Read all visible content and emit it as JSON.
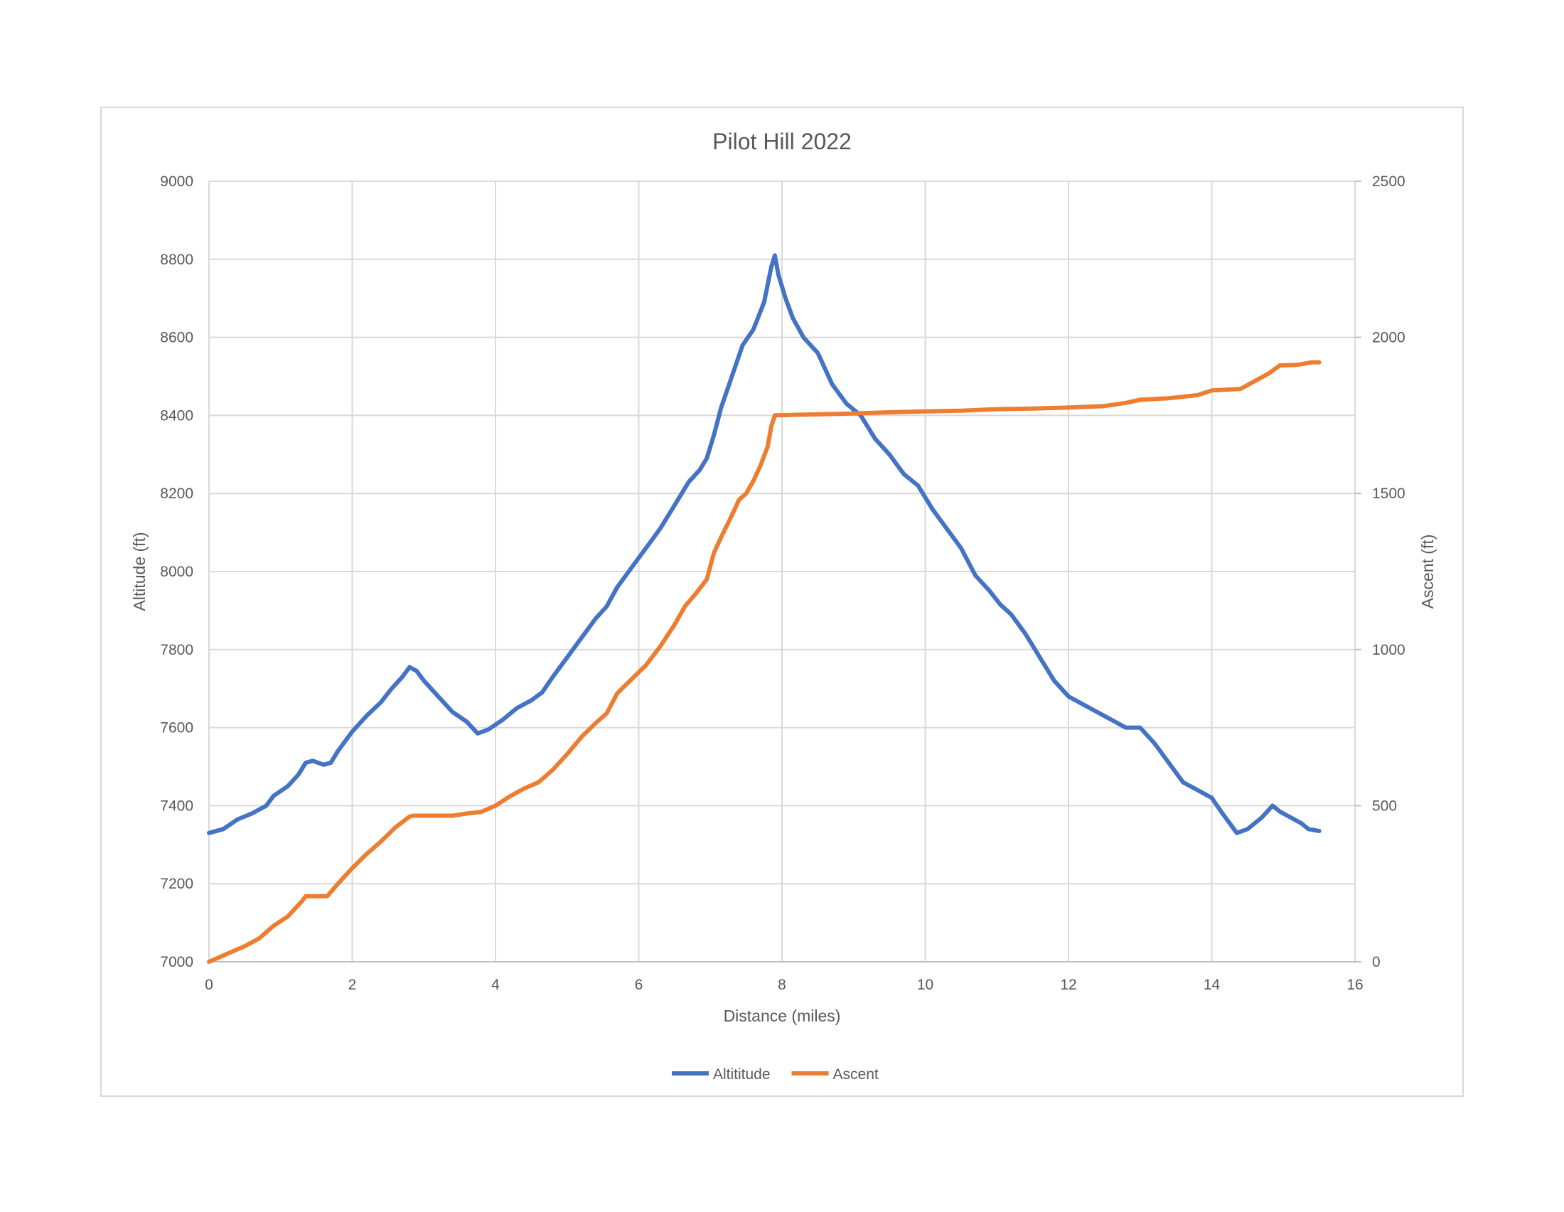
{
  "chart_data": {
    "type": "line",
    "title": "Pilot Hill 2022",
    "xlabel": "Distance (miles)",
    "ylabel": "Altitude (ft)",
    "y2label": "Ascent (ft)",
    "xlim": [
      0,
      16
    ],
    "ylim": [
      7000,
      9000
    ],
    "y2lim": [
      0,
      2500
    ],
    "xticks": [
      0,
      2,
      4,
      6,
      8,
      10,
      12,
      14,
      16
    ],
    "yticks": [
      7000,
      7200,
      7400,
      7600,
      7800,
      8000,
      8200,
      8400,
      8600,
      8800,
      9000
    ],
    "y2ticks": [
      0,
      500,
      1000,
      1500,
      2000,
      2500
    ],
    "grid": true,
    "legend_position": "bottom",
    "series": [
      {
        "name": "Altititude",
        "axis": "left",
        "color": "#4472C4",
        "points": [
          [
            0,
            7330
          ],
          [
            0.2,
            7340
          ],
          [
            0.4,
            7365
          ],
          [
            0.6,
            7380
          ],
          [
            0.8,
            7400
          ],
          [
            0.9,
            7425
          ],
          [
            1.1,
            7450
          ],
          [
            1.25,
            7480
          ],
          [
            1.35,
            7510
          ],
          [
            1.45,
            7515
          ],
          [
            1.6,
            7505
          ],
          [
            1.7,
            7510
          ],
          [
            1.8,
            7540
          ],
          [
            2.0,
            7590
          ],
          [
            2.2,
            7630
          ],
          [
            2.4,
            7665
          ],
          [
            2.55,
            7700
          ],
          [
            2.7,
            7730
          ],
          [
            2.8,
            7755
          ],
          [
            2.9,
            7745
          ],
          [
            3.0,
            7720
          ],
          [
            3.2,
            7680
          ],
          [
            3.4,
            7640
          ],
          [
            3.6,
            7615
          ],
          [
            3.75,
            7585
          ],
          [
            3.9,
            7595
          ],
          [
            4.1,
            7620
          ],
          [
            4.3,
            7650
          ],
          [
            4.5,
            7670
          ],
          [
            4.65,
            7690
          ],
          [
            4.8,
            7730
          ],
          [
            5.0,
            7780
          ],
          [
            5.2,
            7830
          ],
          [
            5.4,
            7880
          ],
          [
            5.55,
            7910
          ],
          [
            5.7,
            7960
          ],
          [
            5.9,
            8010
          ],
          [
            6.1,
            8060
          ],
          [
            6.3,
            8110
          ],
          [
            6.5,
            8170
          ],
          [
            6.7,
            8230
          ],
          [
            6.85,
            8260
          ],
          [
            6.95,
            8290
          ],
          [
            7.05,
            8350
          ],
          [
            7.15,
            8420
          ],
          [
            7.3,
            8500
          ],
          [
            7.45,
            8580
          ],
          [
            7.6,
            8620
          ],
          [
            7.75,
            8690
          ],
          [
            7.85,
            8780
          ],
          [
            7.9,
            8810
          ],
          [
            7.95,
            8760
          ],
          [
            8.05,
            8700
          ],
          [
            8.15,
            8650
          ],
          [
            8.3,
            8600
          ],
          [
            8.5,
            8560
          ],
          [
            8.7,
            8480
          ],
          [
            8.9,
            8430
          ],
          [
            9.1,
            8400
          ],
          [
            9.3,
            8340
          ],
          [
            9.5,
            8300
          ],
          [
            9.7,
            8250
          ],
          [
            9.9,
            8220
          ],
          [
            10.1,
            8160
          ],
          [
            10.3,
            8110
          ],
          [
            10.5,
            8060
          ],
          [
            10.7,
            7990
          ],
          [
            10.9,
            7950
          ],
          [
            11.05,
            7915
          ],
          [
            11.2,
            7890
          ],
          [
            11.4,
            7840
          ],
          [
            11.6,
            7780
          ],
          [
            11.8,
            7720
          ],
          [
            12.0,
            7680
          ],
          [
            12.2,
            7660
          ],
          [
            12.4,
            7640
          ],
          [
            12.6,
            7620
          ],
          [
            12.8,
            7600
          ],
          [
            13.0,
            7600
          ],
          [
            13.2,
            7560
          ],
          [
            13.4,
            7510
          ],
          [
            13.6,
            7460
          ],
          [
            13.8,
            7440
          ],
          [
            14.0,
            7420
          ],
          [
            14.15,
            7380
          ],
          [
            14.35,
            7330
          ],
          [
            14.5,
            7340
          ],
          [
            14.7,
            7370
          ],
          [
            14.85,
            7400
          ],
          [
            14.95,
            7385
          ],
          [
            15.1,
            7370
          ],
          [
            15.25,
            7355
          ],
          [
            15.35,
            7340
          ],
          [
            15.5,
            7335
          ]
        ]
      },
      {
        "name": "Ascent",
        "axis": "right",
        "color": "#ED7D31",
        "points": [
          [
            0,
            0
          ],
          [
            0.15,
            15
          ],
          [
            0.3,
            30
          ],
          [
            0.5,
            50
          ],
          [
            0.7,
            75
          ],
          [
            0.9,
            115
          ],
          [
            1.1,
            145
          ],
          [
            1.3,
            195
          ],
          [
            1.35,
            210
          ],
          [
            1.5,
            210
          ],
          [
            1.65,
            210
          ],
          [
            1.8,
            250
          ],
          [
            2.0,
            300
          ],
          [
            2.2,
            345
          ],
          [
            2.4,
            385
          ],
          [
            2.6,
            430
          ],
          [
            2.8,
            465
          ],
          [
            2.85,
            468
          ],
          [
            3.0,
            468
          ],
          [
            3.2,
            468
          ],
          [
            3.4,
            468
          ],
          [
            3.6,
            475
          ],
          [
            3.8,
            480
          ],
          [
            4.0,
            500
          ],
          [
            4.2,
            530
          ],
          [
            4.4,
            555
          ],
          [
            4.6,
            575
          ],
          [
            4.8,
            615
          ],
          [
            5.0,
            665
          ],
          [
            5.2,
            720
          ],
          [
            5.4,
            765
          ],
          [
            5.55,
            795
          ],
          [
            5.7,
            860
          ],
          [
            5.9,
            905
          ],
          [
            6.1,
            950
          ],
          [
            6.3,
            1010
          ],
          [
            6.5,
            1080
          ],
          [
            6.65,
            1140
          ],
          [
            6.8,
            1180
          ],
          [
            6.95,
            1225
          ],
          [
            7.05,
            1310
          ],
          [
            7.15,
            1360
          ],
          [
            7.3,
            1430
          ],
          [
            7.4,
            1480
          ],
          [
            7.5,
            1500
          ],
          [
            7.6,
            1540
          ],
          [
            7.7,
            1590
          ],
          [
            7.8,
            1650
          ],
          [
            7.85,
            1715
          ],
          [
            7.9,
            1750
          ],
          [
            8.2,
            1752
          ],
          [
            8.8,
            1755
          ],
          [
            9.5,
            1760
          ],
          [
            10.0,
            1763
          ],
          [
            10.5,
            1765
          ],
          [
            11.0,
            1770
          ],
          [
            11.5,
            1772
          ],
          [
            12.0,
            1775
          ],
          [
            12.5,
            1780
          ],
          [
            12.8,
            1790
          ],
          [
            13.0,
            1800
          ],
          [
            13.4,
            1805
          ],
          [
            13.8,
            1815
          ],
          [
            14.0,
            1830
          ],
          [
            14.4,
            1835
          ],
          [
            14.6,
            1860
          ],
          [
            14.8,
            1885
          ],
          [
            14.95,
            1910
          ],
          [
            15.2,
            1912
          ],
          [
            15.4,
            1920
          ],
          [
            15.5,
            1920
          ]
        ]
      }
    ]
  }
}
